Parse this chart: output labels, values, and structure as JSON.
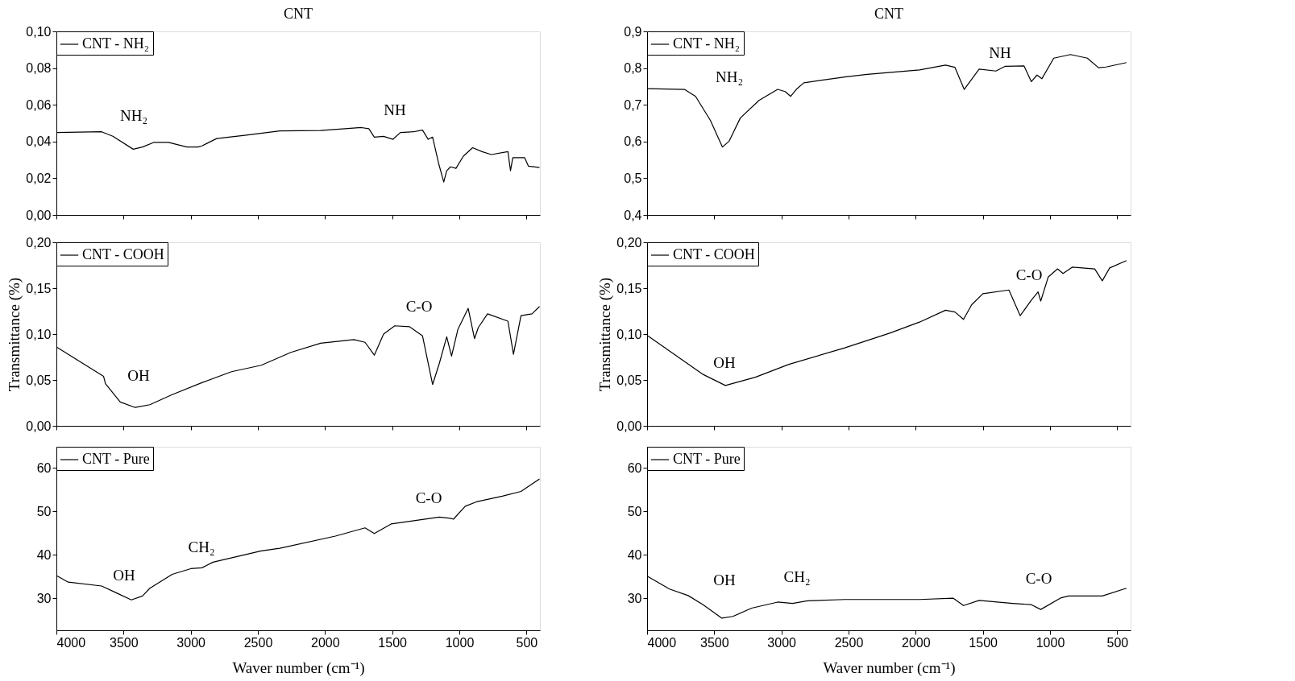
{
  "chart_data": [
    {
      "type": "line",
      "title": "CNT",
      "legend": "top left",
      "tick_labels": "y",
      "grid": false,
      "xlim": [
        4000,
        400
      ],
      "xticks": [
        4000,
        3500,
        3000,
        2500,
        2000,
        1500,
        1000,
        500
      ],
      "ylim": [
        0,
        0.1
      ],
      "yticks": [
        {
          "value": 0,
          "label": "0,00"
        },
        {
          "value": 0.02,
          "label": "0,02"
        },
        {
          "value": 0.04,
          "label": "0,04"
        },
        {
          "value": 0.06,
          "label": "0,06"
        },
        {
          "value": 0.08,
          "label": "0,08"
        },
        {
          "value": 0.1,
          "label": "0,10"
        }
      ],
      "x": [
        4000,
        3663,
        3580,
        3428,
        3359,
        3276,
        3166,
        3028,
        2945,
        2917,
        2807,
        2586,
        2337,
        2033,
        1729,
        1674,
        1633,
        1564,
        1494,
        1439,
        1343,
        1274,
        1232,
        1199,
        1155,
        1116,
        1094,
        1066,
        1025,
        970,
        901,
        831,
        762,
        638,
        619,
        602,
        514,
        486,
        403
      ],
      "series": [
        {
          "name": "CNT - NH₂",
          "color": "#000000",
          "values": [
            0.0449,
            0.0453,
            0.0429,
            0.0358,
            0.037,
            0.0395,
            0.0395,
            0.037,
            0.037,
            0.0376,
            0.0416,
            0.0435,
            0.0458,
            0.046,
            0.0476,
            0.047,
            0.0424,
            0.0428,
            0.0412,
            0.0449,
            0.0453,
            0.0462,
            0.0412,
            0.0424,
            0.0283,
            0.0179,
            0.0241,
            0.0262,
            0.0254,
            0.032,
            0.0366,
            0.0345,
            0.0329,
            0.0345,
            0.0241,
            0.0312,
            0.0312,
            0.0266,
            0.0258
          ]
        }
      ],
      "annotations": [
        "NH₂",
        "NH"
      ]
    },
    {
      "type": "line",
      "ylabel": "Transmittance (%)",
      "legend": "top left",
      "tick_labels": "y",
      "grid": false,
      "xlim": [
        4000,
        400
      ],
      "xticks": [
        4000,
        3500,
        3000,
        2500,
        2000,
        1500,
        1000,
        500
      ],
      "ylim": [
        0,
        0.2
      ],
      "yticks": [
        {
          "value": 0,
          "label": "0,00"
        },
        {
          "value": 0.05,
          "label": "0,05"
        },
        {
          "value": 0.1,
          "label": "0,10"
        },
        {
          "value": 0.15,
          "label": "0,15"
        },
        {
          "value": 0.2,
          "label": "0,20"
        }
      ],
      "x": [
        4000,
        3649,
        3635,
        3525,
        3414,
        3304,
        3138,
        2917,
        2696,
        2475,
        2254,
        2033,
        1785,
        1702,
        1633,
        1564,
        1481,
        1370,
        1274,
        1199,
        1149,
        1094,
        1058,
        1011,
        934,
        887,
        859,
        790,
        638,
        597,
        541,
        459,
        403
      ],
      "series": [
        {
          "name": "CNT - COOH",
          "color": "#000000",
          "values": [
            0.086,
            0.054,
            0.046,
            0.026,
            0.02,
            0.023,
            0.034,
            0.047,
            0.059,
            0.066,
            0.08,
            0.09,
            0.094,
            0.091,
            0.077,
            0.1,
            0.109,
            0.108,
            0.098,
            0.045,
            0.068,
            0.097,
            0.076,
            0.105,
            0.128,
            0.095,
            0.107,
            0.122,
            0.114,
            0.078,
            0.12,
            0.122,
            0.13
          ]
        }
      ],
      "annotations": [
        "OH",
        "C-O"
      ]
    },
    {
      "type": "line",
      "xlabel": "Waver number (cm⁻¹)",
      "legend": "top left",
      "grid": false,
      "xlim": [
        4000,
        400
      ],
      "xticks": [
        4000,
        3500,
        3000,
        2500,
        2000,
        1500,
        1000,
        500
      ],
      "ylim": [
        22.6,
        64.9
      ],
      "yticks": [
        30,
        40,
        50,
        60
      ],
      "x": [
        4000,
        3912,
        3663,
        3552,
        3442,
        3359,
        3304,
        3138,
        3000,
        2917,
        2834,
        2475,
        2337,
        1923,
        1702,
        1633,
        1508,
        1370,
        1149,
        1066,
        1044,
        956,
        873,
        680,
        541,
        403
      ],
      "series": [
        {
          "name": "CNT - Pure",
          "color": "#000000",
          "values": [
            35.2,
            33.7,
            32.8,
            31.2,
            29.6,
            30.5,
            32.3,
            35.5,
            36.8,
            37.0,
            38.3,
            40.9,
            41.5,
            44.3,
            46.2,
            44.9,
            47.1,
            47.7,
            48.7,
            48.4,
            48.2,
            51.2,
            52.2,
            53.5,
            54.6,
            57.5
          ]
        }
      ],
      "annotations": [
        "OH",
        "CH₂",
        "C-O"
      ]
    },
    {
      "type": "line",
      "title": "CNT",
      "legend": "top left",
      "tick_labels": "y",
      "grid": false,
      "xlim": [
        4000,
        400
      ],
      "xticks": [
        4000,
        3500,
        3000,
        2500,
        2000,
        1500,
        1000,
        500
      ],
      "ylim": [
        0.4,
        0.9
      ],
      "yticks": [
        {
          "value": 0.4,
          "label": "0,4"
        },
        {
          "value": 0.5,
          "label": "0,5"
        },
        {
          "value": 0.6,
          "label": "0,6"
        },
        {
          "value": 0.7,
          "label": "0,7"
        },
        {
          "value": 0.8,
          "label": "0,8"
        },
        {
          "value": 0.9,
          "label": "0,9"
        }
      ],
      "x": [
        3994,
        3722,
        3639,
        3528,
        3439,
        3389,
        3306,
        3167,
        3028,
        2972,
        2931,
        2889,
        2833,
        2528,
        2361,
        1972,
        1778,
        1708,
        1639,
        1528,
        1403,
        1333,
        1194,
        1139,
        1097,
        1061,
        972,
        847,
        722,
        639,
        583,
        431
      ],
      "series": [
        {
          "name": "CNT - NH₂",
          "color": "#000000",
          "values": [
            0.744,
            0.742,
            0.723,
            0.657,
            0.585,
            0.601,
            0.664,
            0.712,
            0.742,
            0.736,
            0.723,
            0.742,
            0.76,
            0.776,
            0.783,
            0.795,
            0.808,
            0.802,
            0.742,
            0.797,
            0.792,
            0.805,
            0.806,
            0.763,
            0.781,
            0.771,
            0.827,
            0.837,
            0.827,
            0.801,
            0.803,
            0.815
          ]
        }
      ],
      "annotations": [
        "NH₂",
        "NH"
      ]
    },
    {
      "type": "line",
      "ylabel": "Transmittance (%)",
      "legend": "top left",
      "tick_labels": "y",
      "grid": false,
      "xlim": [
        4000,
        400
      ],
      "xticks": [
        4000,
        3500,
        3000,
        2500,
        2000,
        1500,
        1000,
        500
      ],
      "ylim": [
        0,
        0.2
      ],
      "yticks": [
        {
          "value": 0,
          "label": "0,00"
        },
        {
          "value": 0.05,
          "label": "0,05"
        },
        {
          "value": 0.1,
          "label": "0,10"
        },
        {
          "value": 0.15,
          "label": "0,15"
        },
        {
          "value": 0.2,
          "label": "0,20"
        }
      ],
      "x": [
        3994,
        3583,
        3417,
        3194,
        2944,
        2528,
        2194,
        1972,
        1778,
        1708,
        1644,
        1583,
        1500,
        1306,
        1222,
        1139,
        1089,
        1069,
        1014,
        944,
        903,
        833,
        667,
        611,
        556,
        431
      ],
      "series": [
        {
          "name": "CNT - COOH",
          "color": "#000000",
          "values": [
            0.098,
            0.056,
            0.044,
            0.053,
            0.067,
            0.085,
            0.101,
            0.113,
            0.126,
            0.124,
            0.116,
            0.132,
            0.144,
            0.148,
            0.12,
            0.137,
            0.146,
            0.136,
            0.162,
            0.171,
            0.166,
            0.173,
            0.171,
            0.158,
            0.172,
            0.18
          ]
        }
      ],
      "annotations": [
        "OH",
        "C-O"
      ]
    },
    {
      "type": "line",
      "xlabel": "Waver number (cm⁻¹)",
      "legend": "top left",
      "grid": false,
      "xlim": [
        4000,
        400
      ],
      "xticks": [
        4000,
        3500,
        3000,
        2500,
        2000,
        1500,
        1000,
        500
      ],
      "ylim": [
        22.6,
        64.9
      ],
      "yticks": [
        30,
        40,
        50,
        60
      ],
      "x": [
        3994,
        3833,
        3694,
        3583,
        3444,
        3361,
        3222,
        3028,
        2917,
        2806,
        2528,
        1972,
        1722,
        1644,
        1528,
        1278,
        1139,
        1069,
        917,
        861,
        611,
        431
      ],
      "series": [
        {
          "name": "CNT - Pure",
          "color": "#000000",
          "values": [
            35.0,
            32.1,
            30.6,
            28.5,
            25.4,
            25.8,
            27.7,
            29.1,
            28.8,
            29.4,
            29.7,
            29.7,
            30.0,
            28.3,
            29.5,
            28.8,
            28.5,
            27.4,
            30.1,
            30.5,
            30.5,
            32.3
          ]
        }
      ],
      "annotations": [
        "OH",
        "CH₂",
        "C-O"
      ]
    }
  ]
}
